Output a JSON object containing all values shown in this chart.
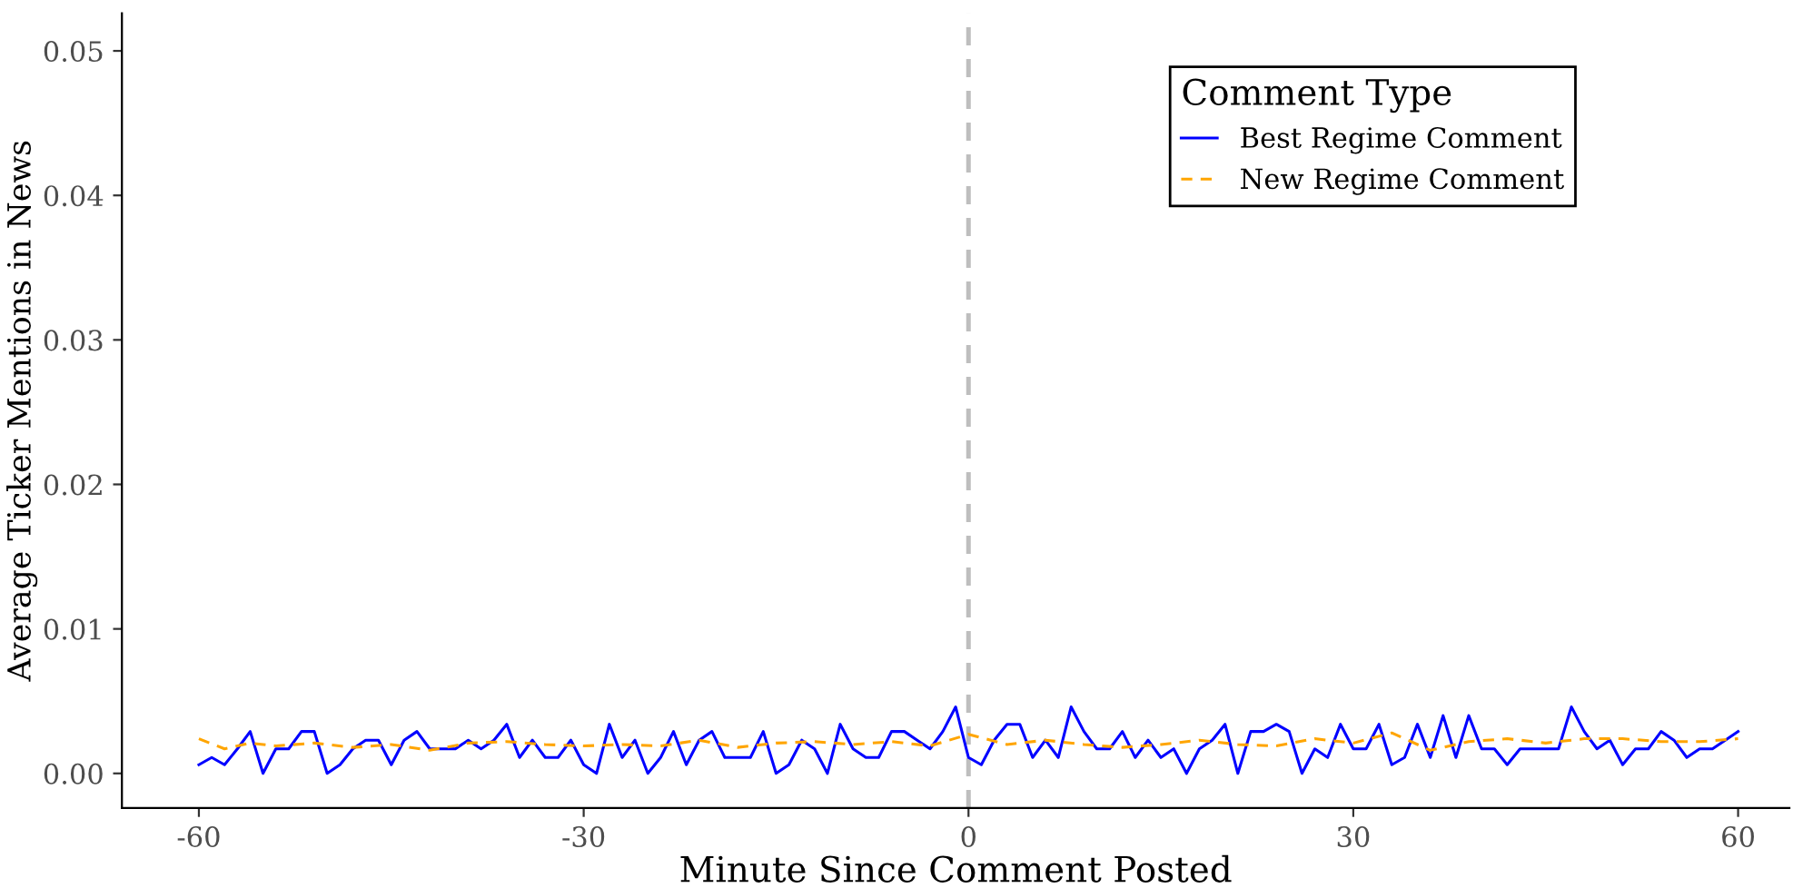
{
  "chart_data": {
    "type": "line",
    "xlabel": "Minute Since Comment Posted",
    "ylabel": "Average Ticker Mentions in News",
    "legend_title": "Comment Type",
    "legend": "top right",
    "grid": false,
    "xlim": [
      -66,
      64
    ],
    "ylim": [
      -0.0024,
      0.0526
    ],
    "xticks": [
      -60,
      -30,
      0,
      30,
      60
    ],
    "yticks": [
      {
        "value": 0,
        "label": "0.00"
      },
      {
        "value": 0.01,
        "label": "0.01"
      },
      {
        "value": 0.02,
        "label": "0.02"
      },
      {
        "value": 0.03,
        "label": "0.03"
      },
      {
        "value": 0.04,
        "label": "0.04"
      },
      {
        "value": 0.05,
        "label": "0.05"
      }
    ],
    "ref_lines": [
      {
        "axis": "x",
        "value": 0,
        "color": "#bebebe",
        "line_style": "dashed"
      }
    ],
    "series": [
      {
        "name": "Best Regime Comment",
        "color": "#0000ff",
        "line_style": "solid",
        "x": [
          -60,
          -59,
          -58,
          -57,
          -56,
          -55,
          -54,
          -53,
          -52,
          -51,
          -50,
          -49,
          -48,
          -47,
          -46,
          -45,
          -44,
          -43,
          -42,
          -41,
          -40,
          -39,
          -38,
          -37,
          -36,
          -35,
          -34,
          -33,
          -32,
          -31,
          -30,
          -29,
          -28,
          -27,
          -26,
          -25,
          -24,
          -23,
          -22,
          -21,
          -20,
          -19,
          -18,
          -17,
          -16,
          -15,
          -14,
          -13,
          -12,
          -11,
          -10,
          -9,
          -8,
          -7,
          -6,
          -5,
          -4,
          -3,
          -2,
          -1,
          0,
          1,
          2,
          3,
          4,
          5,
          6,
          7,
          8,
          9,
          10,
          11,
          12,
          13,
          14,
          15,
          16,
          17,
          18,
          19,
          20,
          21,
          22,
          23,
          24,
          25,
          26,
          27,
          28,
          29,
          30,
          31,
          32,
          33,
          34,
          35,
          36,
          37,
          38,
          39,
          40,
          41,
          42,
          43,
          44,
          45,
          46,
          47,
          48,
          49,
          50,
          51,
          52,
          53,
          54,
          55,
          56,
          57,
          58,
          59,
          60
        ],
        "values": [
          0.0006,
          0.0011,
          0.0006,
          0.0017,
          0.0029,
          0,
          0.0017,
          0.0017,
          0.0029,
          0.0029,
          0,
          0.0006,
          0.0017,
          0.0023,
          0.0023,
          0.0006,
          0.0023,
          0.0029,
          0.0017,
          0.0017,
          0.0017,
          0.0023,
          0.0017,
          0.0023,
          0.0034,
          0.0011,
          0.0023,
          0.0011,
          0.0011,
          0.0023,
          0.0006,
          0,
          0.0034,
          0.0011,
          0.0023,
          0,
          0.0011,
          0.0029,
          0.0006,
          0.0023,
          0.0029,
          0.0011,
          0.0011,
          0.0011,
          0.0029,
          0,
          0.0006,
          0.0023,
          0.0017,
          0,
          0.0034,
          0.0017,
          0.0011,
          0.0011,
          0.0029,
          0.0029,
          0.0023,
          0.0017,
          0.0029,
          0.0046,
          0.0011,
          0.0006,
          0.0023,
          0.0034,
          0.0034,
          0.0011,
          0.0023,
          0.0011,
          0.0046,
          0.0029,
          0.0017,
          0.0017,
          0.0029,
          0.0011,
          0.0023,
          0.0011,
          0.0017,
          0,
          0.0017,
          0.0023,
          0.0034,
          0,
          0.0029,
          0.0029,
          0.0034,
          0.0029,
          0,
          0.0017,
          0.0011,
          0.0034,
          0.0017,
          0.0017,
          0.0034,
          0.0006,
          0.0011,
          0.0034,
          0.0011,
          0.004,
          0.0011,
          0.004,
          0.0017,
          0.0017,
          0.0006,
          0.0017,
          0.0017,
          0.0017,
          0.0017,
          0.0046,
          0.0029,
          0.0017,
          0.0023,
          0.0006,
          0.0017,
          0.0017,
          0.0029,
          0.0023,
          0.0011,
          0.0017,
          0.0017,
          0.0023,
          0.0029
        ]
      },
      {
        "name": "New Regime Comment",
        "color": "#ffa500",
        "line_style": "dashed",
        "x": [
          -60,
          -58,
          -56,
          -54,
          -51,
          -48,
          -45,
          -42,
          -39,
          -36,
          -33,
          -30,
          -27,
          -24,
          -21,
          -18,
          -15,
          -12,
          -9,
          -6,
          -3,
          0,
          3,
          6,
          9,
          12,
          15,
          18,
          21,
          24,
          27,
          30,
          33,
          36,
          39,
          42,
          45,
          48,
          51,
          54,
          57,
          60
        ],
        "values": [
          0.0024,
          0.0017,
          0.0021,
          0.0019,
          0.0021,
          0.0018,
          0.002,
          0.0016,
          0.0021,
          0.0022,
          0.002,
          0.0019,
          0.002,
          0.0019,
          0.0023,
          0.0018,
          0.0021,
          0.0022,
          0.002,
          0.0022,
          0.0019,
          0.0027,
          0.002,
          0.0023,
          0.002,
          0.0018,
          0.002,
          0.0023,
          0.002,
          0.0019,
          0.0024,
          0.0021,
          0.0028,
          0.0016,
          0.0022,
          0.0024,
          0.0021,
          0.0024,
          0.0024,
          0.0022,
          0.0022,
          0.0024
        ]
      }
    ]
  }
}
